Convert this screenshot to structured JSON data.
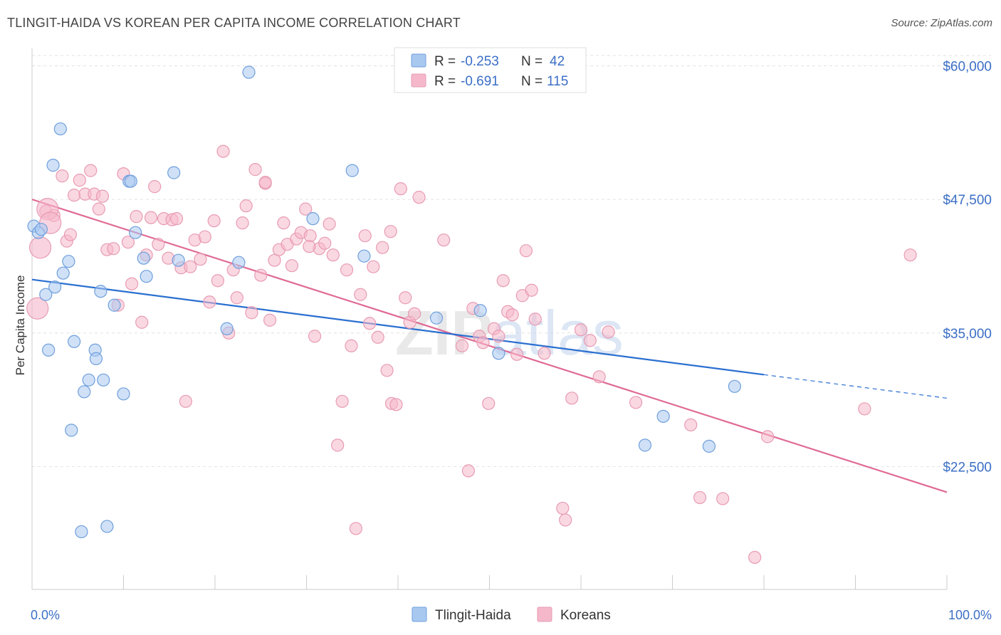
{
  "header": {
    "title": "TLINGIT-HAIDA VS KOREAN PER CAPITA INCOME CORRELATION CHART",
    "source": "Source: ZipAtlas.com"
  },
  "legend": {
    "rows": [
      {
        "r_label": "R =",
        "r_value": "-0.253",
        "n_label": "N =",
        "n_value": "42",
        "color": "#a9c8f0"
      },
      {
        "r_label": "R =",
        "r_value": "-0.691",
        "n_label": "N =",
        "n_value": "115",
        "color": "#f5b8cb"
      }
    ]
  },
  "watermark": {
    "zip": "ZIP",
    "atlas": "atlas"
  },
  "chart_data": {
    "type": "scatter",
    "title": "TLINGIT-HAIDA VS KOREAN PER CAPITA INCOME CORRELATION CHART",
    "xlabel": "",
    "ylabel": "Per Capita Income",
    "xlim": [
      0,
      100
    ],
    "ylim": [
      11000,
      61500
    ],
    "x_tick_labels": [
      "0.0%",
      "100.0%"
    ],
    "y_ticks": [
      22500,
      35000,
      47500,
      60000
    ],
    "y_tick_labels": [
      "$22,500",
      "$35,000",
      "$47,500",
      "$60,000"
    ],
    "grid": true,
    "legend_position": "bottom-center",
    "series": [
      {
        "name": "Tlingit-Haida",
        "color": "#a9c8f0",
        "stroke": "#6f9fdc",
        "trend_color": "#2a6fd0",
        "trend": {
          "x0": 0,
          "y0": 40000,
          "x1": 80,
          "y1": 31100,
          "dash_to_x": 100,
          "dash_to_y": 28900
        },
        "points": [
          [
            0.2,
            45000
          ],
          [
            0.7,
            44400
          ],
          [
            1.0,
            44700
          ],
          [
            1.5,
            38600
          ],
          [
            1.8,
            33400
          ],
          [
            2.3,
            50700
          ],
          [
            2.5,
            39300
          ],
          [
            3.1,
            54100
          ],
          [
            3.4,
            40600
          ],
          [
            4.0,
            41700
          ],
          [
            4.3,
            25900
          ],
          [
            4.6,
            34200
          ],
          [
            5.4,
            16400
          ],
          [
            5.7,
            29500
          ],
          [
            6.2,
            30600
          ],
          [
            6.9,
            33400
          ],
          [
            7.0,
            32600
          ],
          [
            7.5,
            38900
          ],
          [
            7.8,
            30600
          ],
          [
            8.2,
            16900
          ],
          [
            9.0,
            37600
          ],
          [
            10.0,
            29300
          ],
          [
            10.6,
            49200
          ],
          [
            10.8,
            49200
          ],
          [
            11.3,
            44400
          ],
          [
            12.2,
            42000
          ],
          [
            12.5,
            40300
          ],
          [
            15.5,
            50000
          ],
          [
            16.0,
            41800
          ],
          [
            21.3,
            35400
          ],
          [
            22.6,
            41600
          ],
          [
            23.7,
            59400
          ],
          [
            30.7,
            45700
          ],
          [
            35.0,
            50200
          ],
          [
            36.3,
            42200
          ],
          [
            44.2,
            36400
          ],
          [
            49.0,
            37100
          ],
          [
            51.0,
            33100
          ],
          [
            67.0,
            24500
          ],
          [
            69.0,
            27200
          ],
          [
            74.0,
            24400
          ],
          [
            76.8,
            30000
          ]
        ],
        "large_points": []
      },
      {
        "name": "Koreans",
        "color": "#f5b8cb",
        "stroke": "#e89bb3",
        "trend_color": "#e06a95",
        "trend": {
          "x0": 0,
          "y0": 47500,
          "x1": 100,
          "y1": 20100
        },
        "points": [
          [
            1.5,
            46400
          ],
          [
            2.4,
            46000
          ],
          [
            3.3,
            49700
          ],
          [
            3.8,
            43600
          ],
          [
            4.2,
            44200
          ],
          [
            4.6,
            47900
          ],
          [
            5.2,
            49300
          ],
          [
            5.8,
            48000
          ],
          [
            6.4,
            50200
          ],
          [
            6.8,
            48000
          ],
          [
            7.3,
            46600
          ],
          [
            7.7,
            47800
          ],
          [
            8.2,
            42800
          ],
          [
            8.9,
            42900
          ],
          [
            9.4,
            37600
          ],
          [
            10.0,
            49900
          ],
          [
            10.5,
            43500
          ],
          [
            10.9,
            39600
          ],
          [
            11.4,
            45900
          ],
          [
            12.0,
            36000
          ],
          [
            12.5,
            42300
          ],
          [
            13.0,
            45800
          ],
          [
            13.4,
            48700
          ],
          [
            13.8,
            43300
          ],
          [
            14.4,
            45700
          ],
          [
            14.9,
            42000
          ],
          [
            15.3,
            45600
          ],
          [
            15.8,
            45700
          ],
          [
            16.3,
            41100
          ],
          [
            16.8,
            28600
          ],
          [
            17.3,
            41200
          ],
          [
            17.8,
            43700
          ],
          [
            18.4,
            41900
          ],
          [
            18.9,
            44000
          ],
          [
            19.4,
            37900
          ],
          [
            19.9,
            45500
          ],
          [
            20.3,
            39900
          ],
          [
            20.9,
            52000
          ],
          [
            21.5,
            35000
          ],
          [
            22.0,
            40900
          ],
          [
            22.4,
            38300
          ],
          [
            23.0,
            45300
          ],
          [
            23.4,
            46900
          ],
          [
            24.0,
            36900
          ],
          [
            24.4,
            50300
          ],
          [
            25.0,
            40400
          ],
          [
            25.5,
            49000
          ],
          [
            26.0,
            36200
          ],
          [
            26.5,
            41800
          ],
          [
            27.0,
            42800
          ],
          [
            27.5,
            45300
          ],
          [
            27.9,
            43300
          ],
          [
            28.4,
            41300
          ],
          [
            28.9,
            43800
          ],
          [
            29.4,
            44400
          ],
          [
            29.9,
            46600
          ],
          [
            30.4,
            44100
          ],
          [
            30.9,
            34700
          ],
          [
            31.4,
            42900
          ],
          [
            32.0,
            43400
          ],
          [
            32.5,
            45200
          ],
          [
            32.9,
            42300
          ],
          [
            33.4,
            24500
          ],
          [
            33.9,
            28600
          ],
          [
            34.4,
            40900
          ],
          [
            34.9,
            33800
          ],
          [
            35.4,
            16700
          ],
          [
            35.9,
            38600
          ],
          [
            36.4,
            44100
          ],
          [
            36.9,
            35900
          ],
          [
            37.3,
            41200
          ],
          [
            37.8,
            34600
          ],
          [
            38.3,
            43000
          ],
          [
            38.8,
            31500
          ],
          [
            39.3,
            28400
          ],
          [
            39.8,
            28300
          ],
          [
            40.3,
            48500
          ],
          [
            40.8,
            38300
          ],
          [
            41.3,
            36000
          ],
          [
            41.8,
            36800
          ],
          [
            42.3,
            47700
          ],
          [
            45.0,
            43700
          ],
          [
            47.0,
            33800
          ],
          [
            47.7,
            22100
          ],
          [
            48.2,
            37300
          ],
          [
            48.9,
            34700
          ],
          [
            49.3,
            34100
          ],
          [
            49.9,
            28400
          ],
          [
            50.5,
            35400
          ],
          [
            51.0,
            34700
          ],
          [
            51.5,
            39900
          ],
          [
            52.0,
            37000
          ],
          [
            52.5,
            36700
          ],
          [
            53.0,
            33000
          ],
          [
            53.6,
            38500
          ],
          [
            54.0,
            42700
          ],
          [
            54.6,
            39000
          ],
          [
            55.0,
            36300
          ],
          [
            56.0,
            33100
          ],
          [
            58.0,
            18600
          ],
          [
            58.3,
            17500
          ],
          [
            59.0,
            28900
          ],
          [
            60.0,
            35300
          ],
          [
            61.0,
            34300
          ],
          [
            62.0,
            30900
          ],
          [
            63.0,
            35100
          ],
          [
            66.0,
            28500
          ],
          [
            72.0,
            26400
          ],
          [
            73.0,
            19600
          ],
          [
            75.5,
            19500
          ],
          [
            79.0,
            14000
          ],
          [
            80.4,
            25300
          ],
          [
            91.0,
            27900
          ],
          [
            96.0,
            42300
          ],
          [
            25.5,
            49100
          ],
          [
            30.3,
            43100
          ],
          [
            39.2,
            44500
          ]
        ],
        "large_points": [
          [
            1.7,
            46600
          ],
          [
            2.0,
            45300
          ],
          [
            0.9,
            43000
          ],
          [
            0.6,
            37300
          ]
        ]
      }
    ]
  },
  "bottom_legend": [
    {
      "label": "Tlingit-Haida",
      "color": "#a9c8f0"
    },
    {
      "label": "Koreans",
      "color": "#f5b8cb"
    }
  ]
}
